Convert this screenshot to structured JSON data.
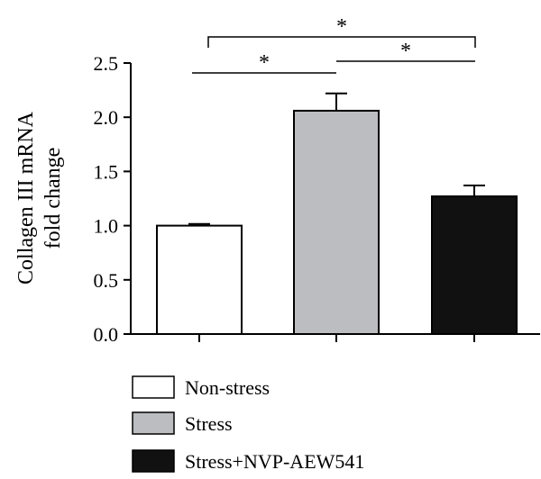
{
  "chart_data": {
    "type": "bar",
    "ylabel_lines": [
      "Collagen III mRNA",
      "fold change"
    ],
    "yticks": [
      "0.0",
      "0.5",
      "1.0",
      "1.5",
      "2.0",
      "2.5"
    ],
    "ylim": [
      0,
      2.5
    ],
    "categories": [
      "Non-stress",
      "Stress",
      "Stress+NVP-AEW541"
    ],
    "values": [
      1.0,
      2.06,
      1.27
    ],
    "errors": [
      0.015,
      0.16,
      0.1
    ],
    "colors": [
      "#ffffff",
      "#bcbdc0",
      "#111111"
    ],
    "legend": [
      "Non-stress",
      "Stress",
      "Stress+NVP-AEW541"
    ],
    "significance": [
      {
        "from": 0,
        "to": 1,
        "label": "*"
      },
      {
        "from": 1,
        "to": 2,
        "label": "*"
      },
      {
        "from": 0,
        "to": 2,
        "label": "*"
      }
    ]
  }
}
